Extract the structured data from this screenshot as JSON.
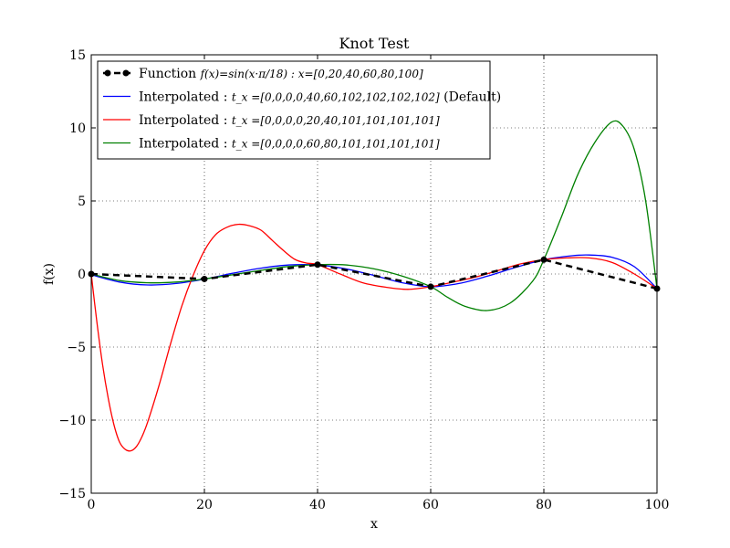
{
  "chart_data": {
    "type": "line",
    "title": "Knot Test",
    "xlabel": "x",
    "ylabel": "f(x)",
    "xlim": [
      0,
      100
    ],
    "ylim": [
      -15,
      15
    ],
    "xticks": [
      0,
      20,
      40,
      60,
      80,
      100
    ],
    "yticks": [
      -15,
      -10,
      -5,
      0,
      5,
      10,
      15
    ],
    "xtick_labels": [
      "0",
      "20",
      "40",
      "60",
      "80",
      "100"
    ],
    "ytick_labels": [
      "−15",
      "−10",
      "−5",
      "0",
      "5",
      "10",
      "15"
    ],
    "grid": true,
    "legend_position": "top-left",
    "series": [
      {
        "name": "Function",
        "math": "f(x)=sin(x·π/18) : x=[0,20,40,60,80,100]",
        "color": "#000000",
        "style": "dashed-markers",
        "x": [
          0,
          20,
          40,
          60,
          80,
          100
        ],
        "y": [
          0.0,
          -0.34,
          0.64,
          -0.87,
          0.98,
          -1.0
        ]
      },
      {
        "name": "Interpolated :",
        "math": "t_x =[0,0,0,0,40,60,102,102,102,102]",
        "suffix": "(Default)",
        "color": "#0000ff",
        "style": "solid",
        "x": [
          0,
          5,
          10,
          15,
          20,
          25,
          30,
          35,
          40,
          45,
          50,
          55,
          60,
          65,
          70,
          75,
          80,
          85,
          88,
          92,
          96,
          100
        ],
        "y": [
          -0.05,
          -0.55,
          -0.75,
          -0.65,
          -0.35,
          0.05,
          0.4,
          0.62,
          0.62,
          0.35,
          -0.1,
          -0.6,
          -0.87,
          -0.65,
          -0.15,
          0.45,
          0.98,
          1.25,
          1.3,
          1.15,
          0.5,
          -1.0
        ]
      },
      {
        "name": "Interpolated :",
        "math": "t_x =[0,0,0,0,20,40,101,101,101,101]",
        "color": "#ff0000",
        "style": "solid",
        "x": [
          0,
          1,
          2,
          3,
          4,
          5,
          6,
          7,
          8,
          9,
          10,
          12,
          14,
          16,
          18,
          20,
          22,
          24,
          26,
          28,
          30,
          32,
          34,
          36,
          38,
          40,
          44,
          48,
          52,
          56,
          60,
          64,
          68,
          72,
          76,
          80,
          84,
          88,
          92,
          96,
          100
        ],
        "y": [
          0.0,
          -3.3,
          -6.2,
          -8.5,
          -10.3,
          -11.5,
          -12.0,
          -12.1,
          -11.8,
          -11.1,
          -10.1,
          -7.6,
          -4.8,
          -2.2,
          -0.1,
          1.6,
          2.7,
          3.2,
          3.4,
          3.3,
          3.0,
          2.3,
          1.6,
          1.0,
          0.75,
          0.64,
          0.0,
          -0.6,
          -0.9,
          -1.05,
          -0.87,
          -0.55,
          -0.2,
          0.25,
          0.7,
          0.98,
          1.1,
          1.1,
          0.8,
          0.0,
          -1.0
        ]
      },
      {
        "name": "Interpolated :",
        "math": "t_x =[0,0,0,0,60,80,101,101,101,101]",
        "color": "#008000",
        "style": "solid",
        "x": [
          0,
          5,
          10,
          15,
          20,
          25,
          30,
          35,
          40,
          45,
          50,
          55,
          60,
          63,
          66,
          70,
          74,
          78,
          80,
          83,
          86,
          89,
          92,
          94,
          96,
          98,
          100
        ],
        "y": [
          0.0,
          -0.45,
          -0.6,
          -0.55,
          -0.34,
          -0.05,
          0.25,
          0.52,
          0.64,
          0.62,
          0.35,
          -0.15,
          -0.87,
          -1.6,
          -2.2,
          -2.5,
          -2.0,
          -0.5,
          0.98,
          3.8,
          6.8,
          9.0,
          10.4,
          10.1,
          8.5,
          5.0,
          -1.0
        ]
      }
    ]
  }
}
